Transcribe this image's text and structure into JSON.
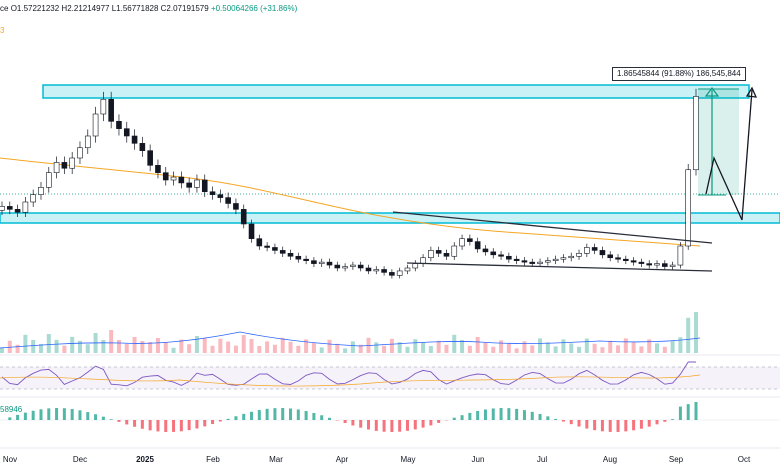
{
  "header": {
    "ohlc_prefix": "ce",
    "open": "O1.57221232",
    "high": "H2.21214977",
    "low": "L1.56771828",
    "close": "C2.07191579",
    "change": "+0.50064266 (+31.86%)",
    "line2": "3",
    "line3": ""
  },
  "measure": {
    "label": "1.86545844 (91.88%) 186,545,844"
  },
  "macd": {
    "value_label": "58946"
  },
  "colors": {
    "up": "#089981",
    "down": "#f23645",
    "ma": "#f5a623",
    "zone_fill": "#b2ebf2",
    "zone_stroke": "#00bcd4",
    "volume_ma": "#2962ff",
    "rsi": "#7e57c2",
    "measure": "#089981"
  },
  "chart_data": {
    "type": "candlestick",
    "x_ticks": [
      "Nov",
      "Dec",
      "2025",
      "Feb",
      "Mar",
      "Apr",
      "May",
      "Jun",
      "Jul",
      "Aug",
      "Sep",
      "Oct"
    ],
    "price_closes": [
      1.32,
      1.3,
      1.28,
      1.35,
      1.4,
      1.45,
      1.55,
      1.62,
      1.58,
      1.65,
      1.72,
      1.8,
      1.95,
      2.05,
      1.9,
      1.85,
      1.8,
      1.75,
      1.7,
      1.6,
      1.55,
      1.5,
      1.52,
      1.48,
      1.45,
      1.5,
      1.42,
      1.4,
      1.38,
      1.34,
      1.3,
      1.2,
      1.1,
      1.05,
      1.04,
      1.02,
      1.0,
      0.98,
      0.96,
      0.95,
      0.93,
      0.94,
      0.92,
      0.9,
      0.91,
      0.92,
      0.9,
      0.88,
      0.89,
      0.87,
      0.85,
      0.88,
      0.9,
      0.93,
      0.97,
      1.02,
      1.0,
      0.98,
      1.05,
      1.1,
      1.08,
      1.03,
      1.01,
      0.99,
      0.98,
      0.96,
      0.95,
      0.94,
      0.93,
      0.94,
      0.95,
      0.96,
      0.97,
      0.98,
      1.0,
      1.04,
      1.02,
      0.99,
      0.97,
      0.96,
      0.95,
      0.94,
      0.93,
      0.92,
      0.93,
      0.91,
      0.92,
      1.05,
      1.57,
      2.07
    ],
    "ma_series": [
      1.55,
      1.54,
      1.53,
      1.52,
      1.5,
      1.47,
      1.43,
      1.38,
      1.33,
      1.28,
      1.23,
      1.18,
      1.14,
      1.1,
      1.07,
      1.04,
      1.02,
      1.0,
      0.99
    ],
    "resistance_zone": [
      2.0,
      2.04
    ],
    "support_zone": [
      1.29,
      1.32
    ],
    "measure_range": [
      1.2,
      2.02
    ],
    "y_range": [
      0.75,
      2.25
    ]
  }
}
